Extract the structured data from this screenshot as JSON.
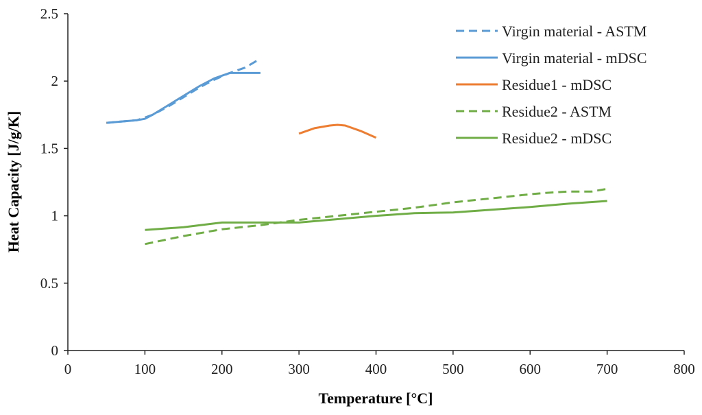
{
  "chart_data": {
    "type": "line",
    "title": "",
    "xlabel": "Temperature [°C]",
    "ylabel": "Heat Capacity [J/g/K]",
    "xlim": [
      0,
      800
    ],
    "ylim": [
      0,
      2.5
    ],
    "x_ticks": [
      "0",
      "100",
      "200",
      "300",
      "400",
      "500",
      "600",
      "700",
      "800"
    ],
    "y_ticks": [
      "0",
      "0.5",
      "1",
      "1.5",
      "2",
      "2.5"
    ],
    "grid": false,
    "legend_position": "top-right",
    "series": [
      {
        "name": "Virgin material - ASTM",
        "color": "#5B9BD5",
        "dash": "dashed",
        "x": [
          50,
          70,
          90,
          110,
          130,
          150,
          170,
          190,
          210,
          230,
          245
        ],
        "y": [
          1.69,
          1.7,
          1.71,
          1.75,
          1.81,
          1.88,
          1.95,
          2.01,
          2.06,
          2.1,
          2.15
        ]
      },
      {
        "name": "Virgin material - mDSC",
        "color": "#5B9BD5",
        "dash": "solid",
        "x": [
          50,
          70,
          90,
          100,
          110,
          130,
          150,
          170,
          190,
          200,
          210,
          220,
          230,
          240,
          250
        ],
        "y": [
          1.69,
          1.7,
          1.71,
          1.72,
          1.75,
          1.82,
          1.89,
          1.96,
          2.02,
          2.04,
          2.06,
          2.06,
          2.06,
          2.06,
          2.06
        ]
      },
      {
        "name": "Residue1 - mDSC",
        "color": "#ED7D31",
        "dash": "solid",
        "x": [
          300,
          320,
          340,
          350,
          360,
          380,
          400
        ],
        "y": [
          1.61,
          1.65,
          1.67,
          1.675,
          1.67,
          1.63,
          1.58
        ]
      },
      {
        "name": "Residue2 - ASTM",
        "color": "#70AD47",
        "dash": "dashed",
        "x": [
          100,
          150,
          200,
          250,
          300,
          350,
          400,
          450,
          500,
          550,
          600,
          620,
          650,
          680,
          700
        ],
        "y": [
          0.79,
          0.85,
          0.9,
          0.93,
          0.97,
          1.0,
          1.03,
          1.06,
          1.1,
          1.13,
          1.16,
          1.17,
          1.18,
          1.18,
          1.2
        ]
      },
      {
        "name": "Residue2 - mDSC",
        "color": "#70AD47",
        "dash": "solid",
        "x": [
          100,
          150,
          200,
          250,
          300,
          350,
          400,
          450,
          500,
          550,
          600,
          650,
          700
        ],
        "y": [
          0.895,
          0.915,
          0.95,
          0.95,
          0.95,
          0.975,
          1.0,
          1.02,
          1.025,
          1.045,
          1.065,
          1.09,
          1.11
        ]
      }
    ]
  }
}
